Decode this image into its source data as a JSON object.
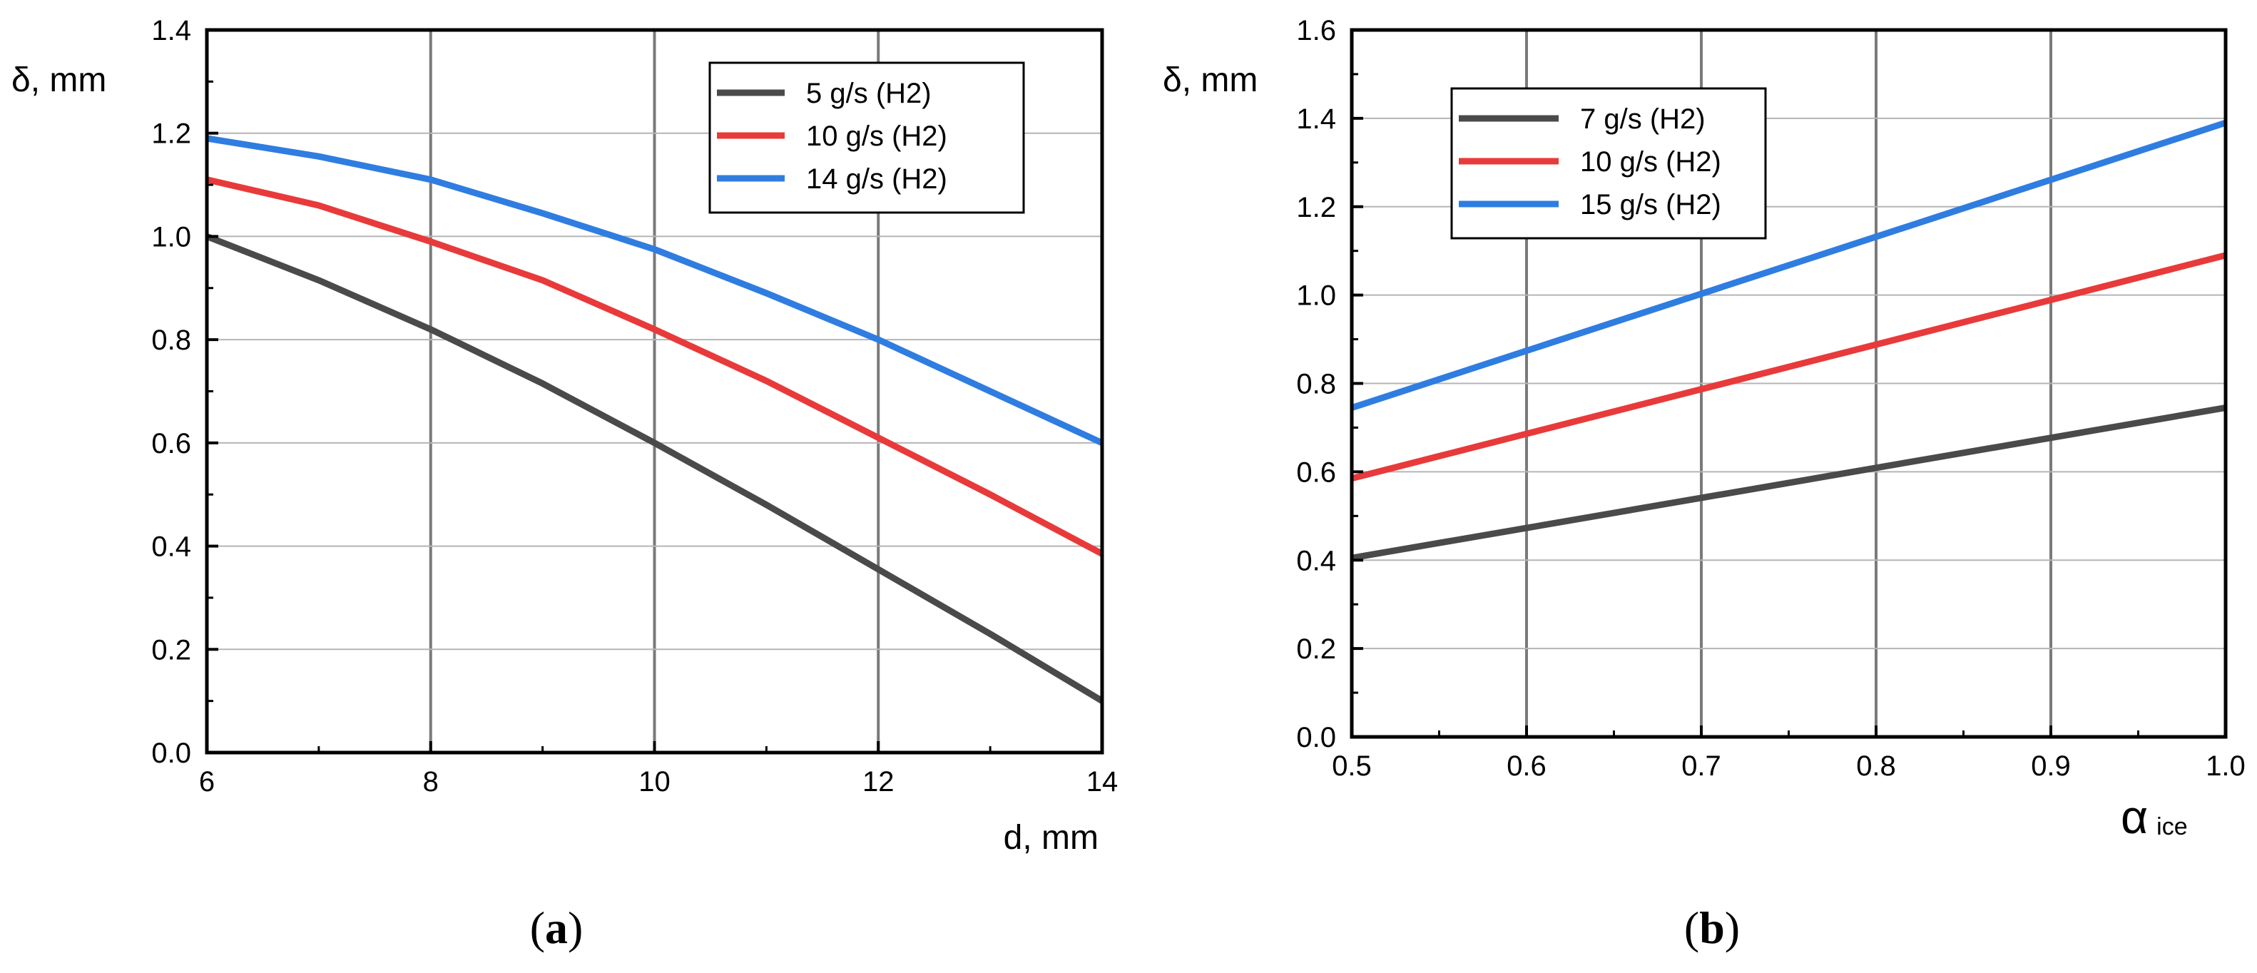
{
  "chart_data": [
    {
      "type": "line",
      "panel": "a",
      "caption": {
        "open": "(",
        "letter": "a",
        "close": ")"
      },
      "ylabel": "δ, mm",
      "xlabel": "d, mm",
      "xlim": [
        6,
        14
      ],
      "ylim": [
        0.0,
        1.4
      ],
      "x_ticks": [
        6,
        8,
        10,
        12,
        14
      ],
      "x_tick_labels": [
        "6",
        "8",
        "10",
        "12",
        "14"
      ],
      "x_minor_ticks": [
        7,
        9,
        11,
        13
      ],
      "y_ticks": [
        0.0,
        0.2,
        0.4,
        0.6,
        0.8,
        1.0,
        1.2,
        1.4
      ],
      "y_tick_labels": [
        "0.0",
        "0.2",
        "0.4",
        "0.6",
        "0.8",
        "1.0",
        "1.2",
        "1.4"
      ],
      "y_minor_ticks": [
        0.1,
        0.3,
        0.5,
        0.7,
        0.9,
        1.1,
        1.3
      ],
      "grid": true,
      "legend_position": "top-right",
      "series": [
        {
          "name": "5 g/s (H2)",
          "color": "#4a4a4a",
          "x": [
            6,
            7,
            8,
            9,
            10,
            11,
            12,
            13,
            14
          ],
          "y": [
            1.0,
            0.915,
            0.82,
            0.715,
            0.6,
            0.48,
            0.355,
            0.23,
            0.1
          ]
        },
        {
          "name": "10 g/s (H2)",
          "color": "#e83a3a",
          "x": [
            6,
            7,
            8,
            9,
            10,
            11,
            12,
            13,
            14
          ],
          "y": [
            1.11,
            1.06,
            0.99,
            0.915,
            0.82,
            0.72,
            0.61,
            0.5,
            0.385
          ]
        },
        {
          "name": "14 g/s (H2)",
          "color": "#2f7de0",
          "x": [
            6,
            7,
            8,
            9,
            10,
            11,
            12,
            13,
            14
          ],
          "y": [
            1.19,
            1.155,
            1.11,
            1.045,
            0.975,
            0.89,
            0.8,
            0.7,
            0.6
          ]
        }
      ]
    },
    {
      "type": "line",
      "panel": "b",
      "caption": {
        "open": "(",
        "letter": "b",
        "close": ")"
      },
      "ylabel": "δ, mm",
      "xlabel": "α",
      "xlabel_sub": "ice",
      "xlim": [
        0.5,
        1.0
      ],
      "ylim": [
        0.0,
        1.6
      ],
      "x_ticks": [
        0.5,
        0.6,
        0.7,
        0.8,
        0.9,
        1.0
      ],
      "x_tick_labels": [
        "0.5",
        "0.6",
        "0.7",
        "0.8",
        "0.9",
        "1.0"
      ],
      "x_minor_ticks": [
        0.55,
        0.65,
        0.75,
        0.85,
        0.95
      ],
      "y_ticks": [
        0.0,
        0.2,
        0.4,
        0.6,
        0.8,
        1.0,
        1.2,
        1.4,
        1.6
      ],
      "y_tick_labels": [
        "0.0",
        "0.2",
        "0.4",
        "0.6",
        "0.8",
        "1.0",
        "1.2",
        "1.4",
        "1.6"
      ],
      "y_minor_ticks": [
        0.1,
        0.3,
        0.5,
        0.7,
        0.9,
        1.1,
        1.3,
        1.5
      ],
      "grid": true,
      "legend_position": "top-left",
      "series": [
        {
          "name": "7 g/s (H2)",
          "color": "#4a4a4a",
          "x": [
            0.5,
            1.0
          ],
          "y": [
            0.405,
            0.745
          ]
        },
        {
          "name": "10 g/s (H2)",
          "color": "#e83a3a",
          "x": [
            0.5,
            1.0
          ],
          "y": [
            0.585,
            1.09
          ]
        },
        {
          "name": "15 g/s (H2)",
          "color": "#2f7de0",
          "x": [
            0.5,
            1.0
          ],
          "y": [
            0.745,
            1.39
          ]
        }
      ]
    }
  ]
}
